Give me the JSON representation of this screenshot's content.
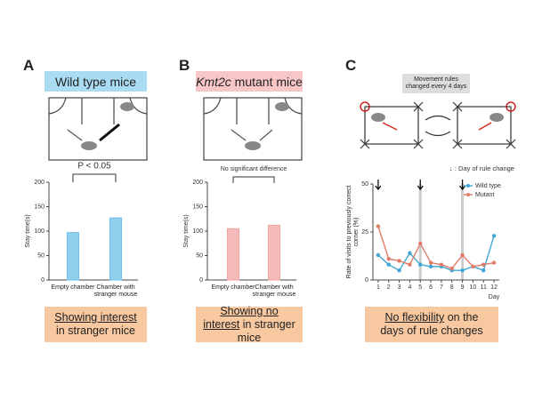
{
  "panels": [
    {
      "label": "A",
      "heading": "Wild type mice",
      "caption": {
        "underlined": "Showing interest",
        "rest": "in stranger mice"
      }
    },
    {
      "label": "B",
      "heading_italic": "Kmt2c",
      "heading": "mutant mice",
      "caption": {
        "underlined": "Showing no interest",
        "rest": "in stranger mice"
      }
    },
    {
      "label": "C",
      "note": "Movement rules changed every 4 days",
      "caption": {
        "underlined": "No flexibility",
        "rest": "on the days of rule changes"
      }
    }
  ],
  "chart_data": [
    {
      "type": "bar",
      "ylabel": "Stay time(s)",
      "categories": [
        "Empty chamber",
        "Chamber with stranger mouse"
      ],
      "values": [
        97,
        127
      ],
      "color": "#6cc0e5",
      "ylim": [
        0,
        200
      ],
      "yticks": [
        0,
        50,
        100,
        150,
        200
      ],
      "annotation": "P < 0.05"
    },
    {
      "type": "bar",
      "ylabel": "Stay time(s)",
      "categories": [
        "Empty chamber",
        "Chamber with stranger mouse"
      ],
      "values": [
        105,
        112
      ],
      "color": "#f2a3a3",
      "ylim": [
        0,
        200
      ],
      "yticks": [
        0,
        50,
        100,
        150,
        200
      ],
      "annotation": "No significant difference"
    },
    {
      "type": "line",
      "ylabel": "Rate of visits to previously correct corner (%)",
      "xlabel": "Day",
      "x": [
        1,
        2,
        3,
        4,
        5,
        6,
        7,
        8,
        9,
        10,
        11,
        12
      ],
      "series": [
        {
          "name": "Wild type",
          "color": "#3fa7d6",
          "values": [
            13,
            8,
            5,
            14,
            8,
            7,
            7,
            5,
            5,
            7,
            5,
            23
          ]
        },
        {
          "name": "Mutant",
          "color": "#e07b6a",
          "values": [
            28,
            11,
            10,
            8,
            19,
            9,
            8,
            6,
            13,
            7,
            8,
            9
          ]
        }
      ],
      "xlim": [
        0.5,
        12.5
      ],
      "xticks": [
        1,
        2,
        3,
        4,
        5,
        6,
        7,
        8,
        9,
        10,
        11,
        12
      ],
      "ylim": [
        0,
        50
      ],
      "yticks": [
        0,
        25,
        50
      ],
      "rule_change_days": [
        1,
        5,
        9
      ],
      "highlight_days": [
        5,
        9
      ],
      "rule_change_label": "↓ : Day of rule change",
      "legend": "upper right"
    }
  ]
}
